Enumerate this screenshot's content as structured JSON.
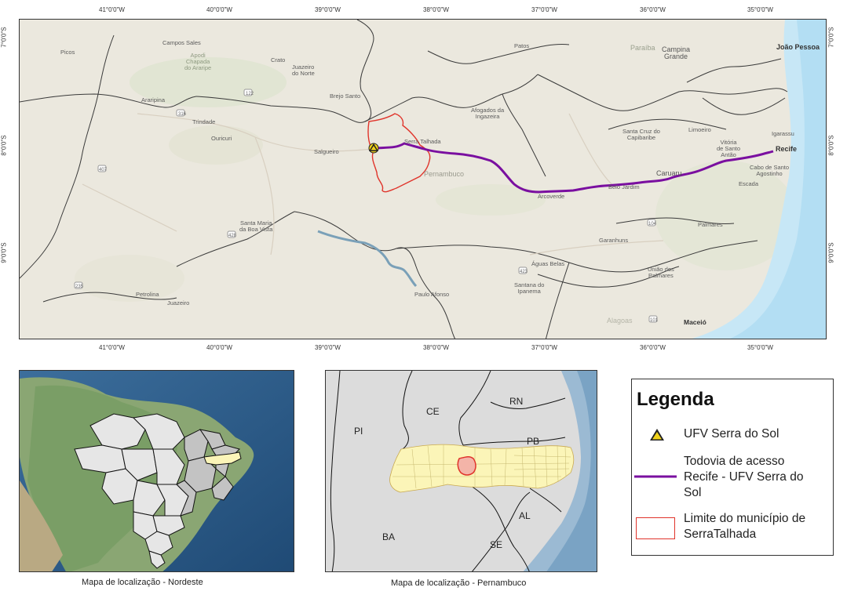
{
  "main_map": {
    "lon_ticks": [
      "41°0'0\"W",
      "40°0'0\"W",
      "39°0'0\"W",
      "38°0'0\"W",
      "37°0'0\"W",
      "36°0'0\"W",
      "35°0'0\"W"
    ],
    "lat_ticks": [
      "7°0'0\"S",
      "8°0'0\"S",
      "9°0'0\"S"
    ],
    "places": {
      "campos_sales": "Campos Sales",
      "picos": "Picos",
      "crato": "Crato",
      "juazeiro_do_norte": "Juazeiro\ndo Norte",
      "apodi": "Apodi\nChapada\ndo Araripe",
      "brejo_santo": "Brejo Santo",
      "patos": "Patos",
      "paraiba": "Paraíba",
      "campina_grande": "Campina\nGrande",
      "joao_pessoa": "João Pessoa",
      "araripina": "Araripina",
      "trindade": "Trindade",
      "ouricuri": "Ouricuri",
      "salgueiro": "Salgueiro",
      "serra_talhada": "Serra Talhada",
      "afogados": "Afogados da\nIngazeira",
      "pernambuco": "Pernambuco",
      "santa_cruz": "Santa Cruz do\nCapibaribe",
      "limoeiro": "Limoeiro",
      "igarassu": "Igarassu",
      "vitoria": "Vitória\nde Santo\nAntão",
      "recife": "Recife",
      "cabo": "Cabo de Santo\nAgostinho",
      "escada": "Escada",
      "caruaru": "Caruaru",
      "belo_jardim": "Belo Jardim",
      "arcoverde": "Arcoverde",
      "santa_maria": "Santa Maria\nda Boa Vista",
      "garanhuns": "Garanhuns",
      "palmares": "Palmares",
      "aguas_belas": "Águas Belas",
      "uniao": "União dos\nPalmares",
      "petrolina": "Petrolina",
      "juazeiro": "Juazeiro",
      "paulo_afonso": "Paulo Afonso",
      "santana": "Santana do\nIpanema",
      "alagoas": "Alagoas",
      "maceio": "Maceió"
    }
  },
  "inset_pe": {
    "states": [
      "PI",
      "CE",
      "RN",
      "PB",
      "AL",
      "BA",
      "SE"
    ]
  },
  "captions": {
    "nordeste": "Mapa de localização - Nordeste",
    "pernambuco": "Mapa de localização - Pernambuco"
  },
  "legend": {
    "title": "Legenda",
    "items": [
      {
        "label": "UFV Serra do Sol"
      },
      {
        "label": "Todovia de acesso\nRecife - UFV Serra do\nSol"
      },
      {
        "label": "Limite do município de\nSerraTalhada"
      }
    ]
  },
  "colors": {
    "road": "#7a0fa0",
    "municipality": "#e0342b",
    "marker_fill": "#f0d21a",
    "pe_fill": "#fbf5b8",
    "basemap": "#ece9df",
    "ocean": "#c7e7f6"
  }
}
